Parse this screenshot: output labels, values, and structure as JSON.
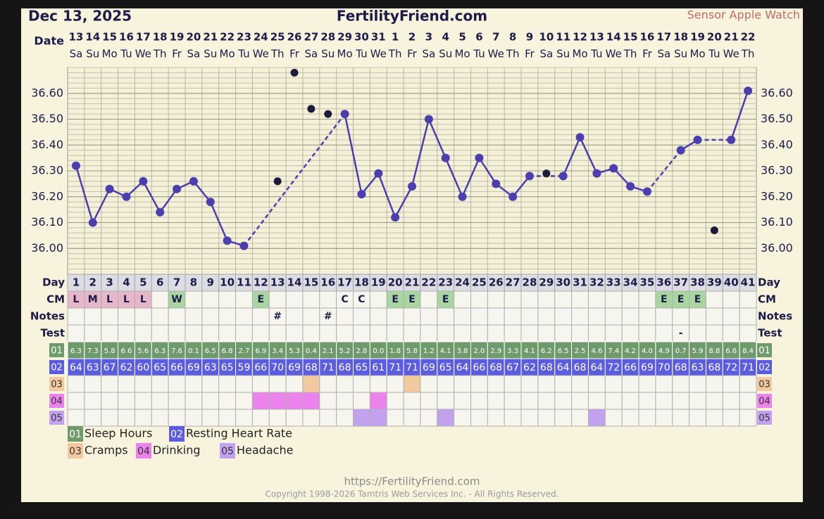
{
  "header": {
    "date": "Dec 13, 2025",
    "site": "FertilityFriend.com",
    "sensor": "Sensor Apple Watch"
  },
  "chart_data": {
    "type": "line",
    "date_label": "Date",
    "dates": [
      "13",
      "14",
      "15",
      "16",
      "17",
      "18",
      "19",
      "20",
      "21",
      "22",
      "23",
      "24",
      "25",
      "26",
      "27",
      "28",
      "29",
      "30",
      "31",
      "1",
      "2",
      "3",
      "4",
      "5",
      "6",
      "7",
      "8",
      "9",
      "10",
      "11",
      "12",
      "13",
      "14",
      "15",
      "16",
      "17",
      "18",
      "19",
      "20",
      "21",
      "22"
    ],
    "weekdays": [
      "Sa",
      "Su",
      "Mo",
      "Tu",
      "We",
      "Th",
      "Fr",
      "Sa",
      "Su",
      "Mo",
      "Tu",
      "We",
      "Th",
      "Fr",
      "Sa",
      "Su",
      "Mo",
      "Tu",
      "We",
      "Th",
      "Fr",
      "Sa",
      "Su",
      "Mo",
      "Tu",
      "We",
      "Th",
      "Fr",
      "Sa",
      "Su",
      "Mo",
      "Tu",
      "We",
      "Th",
      "Fr",
      "Sa",
      "Su",
      "Mo",
      "Tu",
      "We",
      "Th"
    ],
    "day_label": "Day",
    "categories": [
      1,
      2,
      3,
      4,
      5,
      6,
      7,
      8,
      9,
      10,
      11,
      12,
      13,
      14,
      15,
      16,
      17,
      18,
      19,
      20,
      21,
      22,
      23,
      24,
      25,
      26,
      27,
      28,
      29,
      30,
      31,
      32,
      33,
      34,
      35,
      36,
      37,
      38,
      39,
      40,
      41
    ],
    "ylim": [
      35.9,
      36.7
    ],
    "yticks": [
      {
        "value": 36.0,
        "label": "36.00"
      },
      {
        "value": 36.1,
        "label": "36.10"
      },
      {
        "value": 36.2,
        "label": "36.20"
      },
      {
        "value": 36.3,
        "label": "36.30"
      },
      {
        "value": 36.4,
        "label": "36.40"
      },
      {
        "value": 36.5,
        "label": "36.50"
      },
      {
        "value": 36.6,
        "label": "36.60"
      }
    ],
    "grid": true,
    "series": [
      {
        "color": "#4b3fae",
        "values": [
          36.32,
          36.1,
          36.23,
          36.2,
          36.26,
          36.14,
          36.23,
          36.26,
          36.18,
          36.03,
          36.01,
          null,
          null,
          null,
          null,
          null,
          36.52,
          36.21,
          36.29,
          36.12,
          36.24,
          36.5,
          36.35,
          36.2,
          36.35,
          36.25,
          36.2,
          36.28,
          null,
          36.28,
          36.43,
          36.29,
          36.31,
          36.24,
          36.22,
          null,
          36.38,
          36.42,
          null,
          36.42,
          36.61
        ]
      },
      {
        "color": "#1e1a3a",
        "values": [
          null,
          null,
          null,
          null,
          null,
          null,
          null,
          null,
          null,
          null,
          null,
          null,
          36.26,
          36.68,
          36.54,
          36.52,
          null,
          null,
          null,
          null,
          null,
          null,
          null,
          null,
          null,
          null,
          null,
          null,
          36.29,
          null,
          null,
          null,
          null,
          null,
          null,
          null,
          null,
          null,
          36.07,
          null,
          null
        ]
      }
    ]
  },
  "table": {
    "cm": {
      "label": "CM",
      "values": [
        "L",
        "M",
        "L",
        "L",
        "L",
        null,
        "W",
        null,
        null,
        null,
        null,
        "E",
        null,
        null,
        null,
        null,
        "C",
        "C",
        null,
        "E",
        "E",
        null,
        "E",
        null,
        null,
        null,
        null,
        null,
        null,
        null,
        null,
        null,
        null,
        null,
        null,
        "E",
        "E",
        "E",
        null,
        null,
        null
      ]
    },
    "cm_colors": {
      "L": "#e6b7c9",
      "M": "#e6b7c9",
      "W": "#a9d6a0",
      "E": "#a9d6a0"
    },
    "notes": {
      "label": "Notes",
      "values": [
        null,
        null,
        null,
        null,
        null,
        null,
        null,
        null,
        null,
        null,
        null,
        null,
        "#",
        null,
        null,
        "#",
        null,
        null,
        null,
        null,
        null,
        null,
        null,
        null,
        null,
        null,
        null,
        null,
        null,
        null,
        null,
        null,
        null,
        null,
        null,
        null,
        null,
        null,
        null,
        null,
        null
      ]
    },
    "test": {
      "label": "Test",
      "values": [
        null,
        null,
        null,
        null,
        null,
        null,
        null,
        null,
        null,
        null,
        null,
        null,
        null,
        null,
        null,
        null,
        null,
        null,
        null,
        null,
        null,
        null,
        null,
        null,
        null,
        null,
        null,
        null,
        null,
        null,
        null,
        null,
        null,
        null,
        null,
        null,
        "-",
        null,
        null,
        null,
        null
      ]
    },
    "data_rows": [
      {
        "code": "01",
        "name": "Sleep Hours",
        "color": "#6f9a6c",
        "values": [
          "6.3",
          "7.3",
          "5.8",
          "6.6",
          "5.6",
          "6.3",
          "7.6",
          "0.1",
          "6.5",
          "6.8",
          "2.7",
          "6.9",
          "3.4",
          "5.3",
          "0.4",
          "2.1",
          "5.2",
          "2.8",
          "0.0",
          "1.8",
          "5.8",
          "1.2",
          "4.1",
          "3.8",
          "2.0",
          "2.9",
          "3.3",
          "4.1",
          "6.2",
          "6.5",
          "2.5",
          "4.6",
          "7.4",
          "4.2",
          "4.0",
          "4.9",
          "0.7",
          "5.9",
          "8.8",
          "6.6",
          "8.4"
        ]
      },
      {
        "code": "02",
        "name": "Resting Heart Rate",
        "color": "#5c5ce0",
        "values": [
          64,
          63,
          67,
          62,
          60,
          65,
          66,
          69,
          63,
          65,
          59,
          66,
          70,
          69,
          68,
          71,
          68,
          65,
          61,
          71,
          71,
          69,
          65,
          64,
          66,
          68,
          67,
          62,
          68,
          64,
          68,
          64,
          72,
          66,
          69,
          70,
          68,
          63,
          68,
          72,
          71
        ]
      },
      {
        "code": "03",
        "name": "Cramps",
        "color": "#f3c9a0",
        "days": [
          15,
          21
        ]
      },
      {
        "code": "04",
        "name": "Drinking",
        "color": "#ec82ec",
        "days": [
          12,
          13,
          14,
          15,
          19
        ]
      },
      {
        "code": "05",
        "name": "Headache",
        "color": "#c2a2ef",
        "days": [
          18,
          19,
          23,
          32
        ]
      }
    ]
  },
  "footer": {
    "url": "https://FertilityFriend.com",
    "copyright": "Copyright 1998-2026 Tamtris Web Services Inc. - All Rights Reserved."
  }
}
